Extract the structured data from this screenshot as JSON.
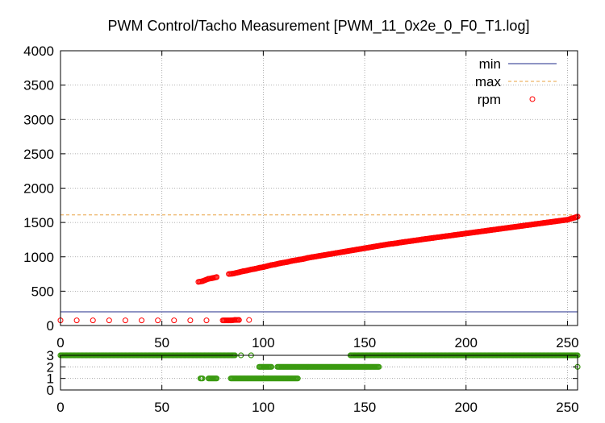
{
  "chart_data": [
    {
      "type": "scatter",
      "title": "PWM Control/Tacho Measurement [PWM_11_0x2e_0_F0_T1.log]",
      "xlabel": "",
      "ylabel": "",
      "xlim": [
        0,
        255
      ],
      "ylim": [
        0,
        4000
      ],
      "xticks": [
        "0",
        "50",
        "100",
        "150",
        "200",
        "250"
      ],
      "yticks": [
        "0",
        "500",
        "1000",
        "1500",
        "2000",
        "2500",
        "3000",
        "3500",
        "4000"
      ],
      "grid": true,
      "legend_position": "top-right",
      "lines": [
        {
          "name": "min",
          "y": 200,
          "color": "#1f2a8a",
          "style": "solid"
        },
        {
          "name": "max",
          "y": 1610,
          "color": "#e8a040",
          "style": "dashed"
        }
      ],
      "series": [
        {
          "name": "rpm",
          "color": "#ff0000",
          "marker": "circle",
          "points": [
            [
              0,
              75
            ],
            [
              8,
              75
            ],
            [
              16,
              75
            ],
            [
              24,
              75
            ],
            [
              32,
              75
            ],
            [
              40,
              75
            ],
            [
              48,
              75
            ],
            [
              56,
              75
            ],
            [
              64,
              75
            ],
            [
              72,
              75
            ],
            [
              80,
              75
            ],
            [
              84,
              75
            ],
            [
              86,
              80
            ],
            [
              88,
              80
            ],
            [
              93,
              80
            ],
            [
              68,
              635
            ],
            [
              70,
              645
            ],
            [
              73,
              680
            ],
            [
              75,
              690
            ],
            [
              77,
              705
            ],
            [
              83,
              750
            ],
            [
              85,
              755
            ],
            [
              88,
              775
            ],
            [
              90,
              790
            ],
            [
              92,
              800
            ],
            [
              94,
              815
            ],
            [
              96,
              825
            ],
            [
              98,
              840
            ],
            [
              100,
              850
            ],
            [
              102,
              865
            ],
            [
              104,
              880
            ],
            [
              106,
              890
            ],
            [
              108,
              905
            ],
            [
              110,
              915
            ],
            [
              112,
              925
            ],
            [
              114,
              940
            ],
            [
              116,
              950
            ],
            [
              118,
              960
            ],
            [
              120,
              970
            ],
            [
              122,
              985
            ],
            [
              124,
              995
            ],
            [
              126,
              1005
            ],
            [
              128,
              1015
            ],
            [
              130,
              1025
            ],
            [
              132,
              1035
            ],
            [
              134,
              1045
            ],
            [
              136,
              1055
            ],
            [
              138,
              1065
            ],
            [
              140,
              1075
            ],
            [
              142,
              1085
            ],
            [
              144,
              1095
            ],
            [
              146,
              1105
            ],
            [
              148,
              1115
            ],
            [
              150,
              1125
            ],
            [
              152,
              1135
            ],
            [
              154,
              1145
            ],
            [
              156,
              1155
            ],
            [
              158,
              1165
            ],
            [
              160,
              1175
            ],
            [
              162,
              1185
            ],
            [
              164,
              1192
            ],
            [
              166,
              1200
            ],
            [
              168,
              1210
            ],
            [
              170,
              1218
            ],
            [
              172,
              1226
            ],
            [
              174,
              1235
            ],
            [
              176,
              1243
            ],
            [
              178,
              1252
            ],
            [
              180,
              1260
            ],
            [
              182,
              1268
            ],
            [
              184,
              1276
            ],
            [
              186,
              1284
            ],
            [
              188,
              1292
            ],
            [
              190,
              1300
            ],
            [
              192,
              1308
            ],
            [
              194,
              1316
            ],
            [
              196,
              1324
            ],
            [
              198,
              1332
            ],
            [
              200,
              1340
            ],
            [
              202,
              1348
            ],
            [
              204,
              1356
            ],
            [
              206,
              1364
            ],
            [
              208,
              1372
            ],
            [
              210,
              1380
            ],
            [
              212,
              1388
            ],
            [
              214,
              1396
            ],
            [
              216,
              1404
            ],
            [
              218,
              1412
            ],
            [
              220,
              1420
            ],
            [
              222,
              1428
            ],
            [
              224,
              1436
            ],
            [
              226,
              1444
            ],
            [
              228,
              1452
            ],
            [
              230,
              1460
            ],
            [
              232,
              1468
            ],
            [
              234,
              1476
            ],
            [
              236,
              1484
            ],
            [
              238,
              1492
            ],
            [
              240,
              1500
            ],
            [
              242,
              1508
            ],
            [
              244,
              1516
            ],
            [
              246,
              1524
            ],
            [
              248,
              1532
            ],
            [
              250,
              1540
            ],
            [
              252,
              1558
            ],
            [
              254,
              1575
            ],
            [
              255,
              1585
            ]
          ]
        }
      ]
    },
    {
      "type": "scatter",
      "title": "",
      "xlim": [
        0,
        255
      ],
      "ylim": [
        0,
        3
      ],
      "xticks": [
        "0",
        "50",
        "100",
        "150",
        "200",
        "250"
      ],
      "yticks": [
        "0",
        "1",
        "2",
        "3"
      ],
      "grid": true,
      "series": [
        {
          "name": "",
          "color": "#3a9a10",
          "marker": "circle",
          "segments": [
            {
              "y": 3,
              "from": 0,
              "to": 86
            },
            {
              "y": 3,
              "from": 89,
              "to": 89
            },
            {
              "y": 3,
              "from": 94,
              "to": 94
            },
            {
              "y": 3,
              "from": 143,
              "to": 255
            },
            {
              "y": 2,
              "from": 98,
              "to": 104
            },
            {
              "y": 2,
              "from": 107,
              "to": 157
            },
            {
              "y": 2,
              "from": 255,
              "to": 255
            },
            {
              "y": 1,
              "from": 69,
              "to": 70
            },
            {
              "y": 1,
              "from": 73,
              "to": 77
            },
            {
              "y": 1,
              "from": 84,
              "to": 117
            }
          ]
        }
      ]
    }
  ]
}
